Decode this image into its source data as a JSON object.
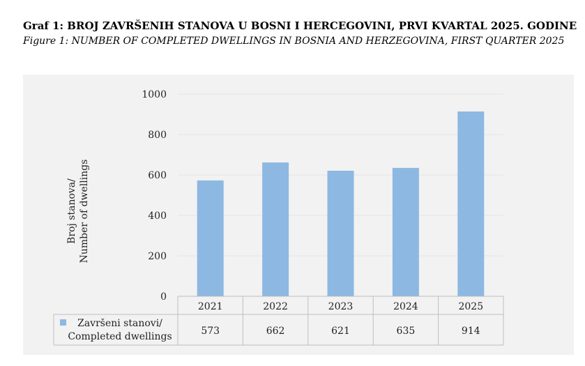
{
  "header": {
    "title": "Graf 1: BROJ ZAVRŠENIH STANOVA U BOSNI I HERCEGOVINI, PRVI KVARTAL 2025. GODINE",
    "subtitle": "Figure 1: NUMBER OF COMPLETED DWELLINGS IN BOSNIA AND HERZEGOVINA, FIRST QUARTER 2025"
  },
  "chart_data": {
    "type": "bar",
    "title": "Graf 1: BROJ ZAVRŠENIH STANOVA U BOSNI I HERCEGOVINI, PRVI KVARTAL 2025. GODINE",
    "subtitle": "Figure 1: NUMBER OF COMPLETED DWELLINGS IN BOSNIA AND HERZEGOVINA, FIRST QUARTER 2025",
    "ylabel": [
      "Broj stanova/",
      "Number of dwellings"
    ],
    "xlabel": "",
    "categories": [
      "2021",
      "2022",
      "2023",
      "2024",
      "2025"
    ],
    "series": [
      {
        "name_lines": [
          "Završeni stanovi/",
          "Completed dwellings"
        ],
        "values": [
          573,
          662,
          621,
          635,
          914
        ],
        "color": "#8db8e2"
      }
    ],
    "ylim": [
      0,
      1000
    ],
    "yticks": [
      0,
      200,
      400,
      600,
      800,
      1000
    ],
    "grid": true,
    "data_table": true,
    "legend_position": "data-table"
  }
}
